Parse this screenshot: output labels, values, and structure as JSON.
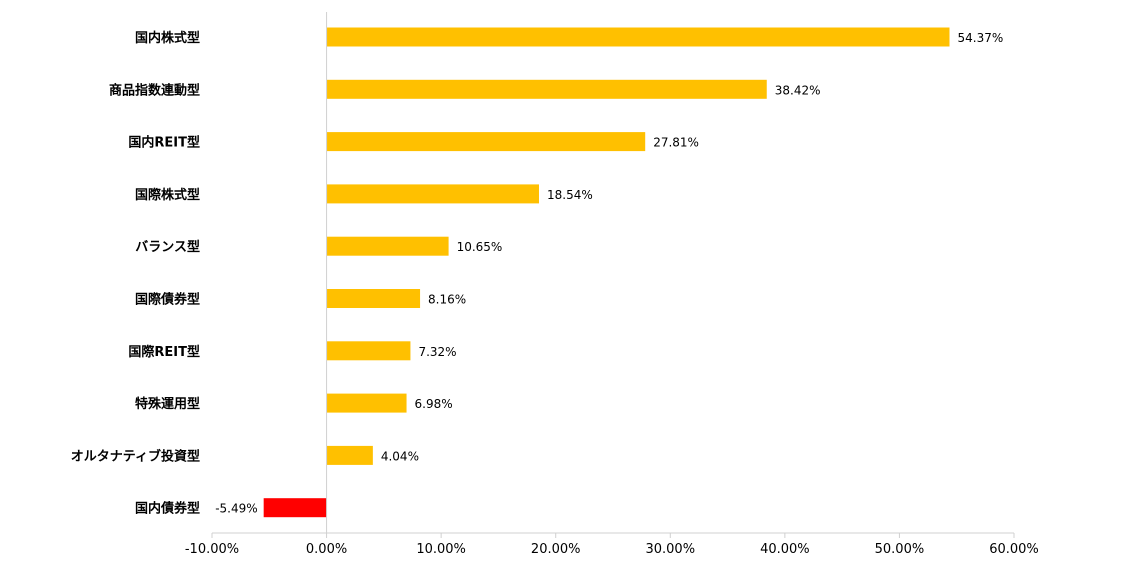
{
  "chart_data": {
    "type": "bar",
    "orientation": "horizontal",
    "categories": [
      "国内株式型",
      "商品指数連動型",
      "国内REIT型",
      "国際株式型",
      "バランス型",
      "国際債券型",
      "国際REIT型",
      "特殊運用型",
      "オルタナティブ投資型",
      "国内債券型"
    ],
    "values": [
      54.37,
      38.42,
      27.81,
      18.54,
      10.65,
      8.16,
      7.32,
      6.98,
      4.04,
      -5.49
    ],
    "value_labels": [
      "54.37%",
      "38.42%",
      "27.81%",
      "18.54%",
      "10.65%",
      "8.16%",
      "7.32%",
      "6.98%",
      "4.04%",
      "-5.49%"
    ],
    "xlim": [
      -10,
      60
    ],
    "x_ticks": [
      -10,
      0,
      10,
      20,
      30,
      40,
      50,
      60
    ],
    "x_tick_labels": [
      "-10.00%",
      "0.00%",
      "10.00%",
      "20.00%",
      "30.00%",
      "40.00%",
      "50.00%",
      "60.00%"
    ],
    "title": "",
    "xlabel": "",
    "ylabel": "",
    "grid": false,
    "legend": "none",
    "colors": {
      "positive": "#FFC000",
      "negative": "#FF0000",
      "axis": "#D0D0D0"
    }
  }
}
